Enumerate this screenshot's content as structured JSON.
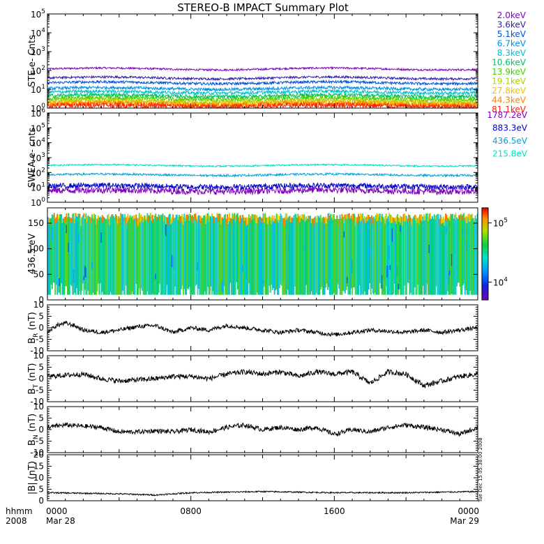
{
  "title": "STEREO-B IMPACT Summary Plot",
  "time_axis": {
    "corner_labels": [
      "hhmm",
      "2008"
    ],
    "ticks": [
      {
        "hhmm": "0000",
        "date": "Mar 28",
        "hour": 0
      },
      {
        "hhmm": "0800",
        "date": "",
        "hour": 8
      },
      {
        "hhmm": "1600",
        "date": "",
        "hour": 16
      },
      {
        "hhmm": "0000",
        "date": "Mar 29",
        "hour": 24
      }
    ]
  },
  "colorbar": {
    "tick_labels": [
      "10^5",
      "10^4"
    ],
    "tick_values": [
      100000,
      10000
    ],
    "range": [
      5000,
      180000
    ]
  },
  "stamp": "Tue Dec 15 05:38:00 2008",
  "chart_data": [
    {
      "id": "ste",
      "type": "line",
      "log": true,
      "ylabel": "STE e- Cnts",
      "ylim": [
        1,
        100000
      ],
      "yticks": [
        {
          "b": "10",
          "e": "0",
          "v": 1
        },
        {
          "b": "10",
          "e": "1",
          "v": 10
        },
        {
          "b": "10",
          "e": "2",
          "v": 100
        },
        {
          "b": "10",
          "e": "3",
          "v": 1000
        },
        {
          "b": "10",
          "e": "4",
          "v": 10000
        },
        {
          "b": "10",
          "e": "5",
          "v": 100000
        }
      ],
      "series": [
        {
          "name": "2.0keV",
          "color": "#8000c0",
          "level": 120,
          "noise": 0.05
        },
        {
          "name": "3.6keV",
          "color": "#3020a0",
          "level": 40,
          "noise": 0.06
        },
        {
          "name": "5.1keV",
          "color": "#0050e0",
          "level": 22,
          "noise": 0.07
        },
        {
          "name": "6.7keV",
          "color": "#0090e0",
          "level": 11,
          "noise": 0.08
        },
        {
          "name": "8.3keV",
          "color": "#00c0d0",
          "level": 7,
          "noise": 0.09
        },
        {
          "name": "10.6keV",
          "color": "#00c060",
          "level": 4.5,
          "noise": 0.1
        },
        {
          "name": "13.9keV",
          "color": "#40d000",
          "level": 3.2,
          "noise": 0.12
        },
        {
          "name": "19.1keV",
          "color": "#b0d000",
          "level": 2.4,
          "noise": 0.12
        },
        {
          "name": "27.8keV",
          "color": "#f0c000",
          "level": 1.9,
          "noise": 0.13
        },
        {
          "name": "44.3keV",
          "color": "#ff8000",
          "level": 1.6,
          "noise": 0.14
        },
        {
          "name": "81.1keV",
          "color": "#ff2000",
          "level": 1.3,
          "noise": 0.15
        }
      ]
    },
    {
      "id": "swea",
      "type": "line",
      "log": true,
      "ylabel": "SWEA e- cnts",
      "ylim": [
        1,
        1000000
      ],
      "yticks": [
        {
          "b": "10",
          "e": "0",
          "v": 1
        },
        {
          "b": "10",
          "e": "1",
          "v": 10
        },
        {
          "b": "10",
          "e": "2",
          "v": 100
        },
        {
          "b": "10",
          "e": "3",
          "v": 1000
        },
        {
          "b": "10",
          "e": "4",
          "v": 10000
        },
        {
          "b": "10",
          "e": "5",
          "v": 100000
        },
        {
          "b": "10",
          "e": "6",
          "v": 1000000
        }
      ],
      "series": [
        {
          "name": "1787.2eV",
          "color": "#8000c0",
          "level": 6,
          "noise": 0.22
        },
        {
          "name": "883.3eV",
          "color": "#0000d0",
          "level": 12,
          "noise": 0.18
        },
        {
          "name": "436.5eV",
          "color": "#00a0e0",
          "level": 70,
          "noise": 0.07
        },
        {
          "name": "215.8eV",
          "color": "#00e0c0",
          "level": 300,
          "noise": 0.05
        }
      ]
    },
    {
      "id": "pad",
      "type": "heatmap",
      "ylabel": "436.5 eV",
      "ylim": [
        0,
        180
      ],
      "yticks": [
        {
          "t": "0",
          "v": 0
        },
        {
          "t": "50",
          "v": 50
        },
        {
          "t": "100",
          "v": 100
        },
        {
          "t": "150",
          "v": 150
        }
      ],
      "angle_range": [
        10,
        170
      ],
      "z_range": [
        5000,
        180000
      ]
    },
    {
      "id": "br",
      "type": "line",
      "ylabel": "B",
      "ysub": "R",
      "yunit": " (nT)",
      "ylim": [
        -10,
        10
      ],
      "yticks": [
        {
          "t": "-10",
          "v": -10
        },
        {
          "t": "-5",
          "v": -5
        },
        {
          "t": "0",
          "v": 0
        },
        {
          "t": "5",
          "v": 5
        },
        {
          "t": "10",
          "v": 10
        }
      ],
      "series": [
        {
          "name": "",
          "color": "#000000",
          "times": [
            0,
            0.5,
            1,
            1.5,
            2,
            3,
            4,
            5,
            6,
            7,
            8,
            9,
            10,
            11,
            12,
            13,
            14,
            15,
            16,
            17,
            18,
            19,
            20,
            21,
            22,
            23,
            24
          ],
          "values": [
            -2,
            1,
            2,
            1,
            -1,
            -2,
            -1,
            0.5,
            1,
            -2,
            0,
            -1,
            1,
            0,
            -1,
            -2,
            -1,
            -2,
            -3,
            -2,
            -1,
            -1.5,
            -2,
            -1,
            -2,
            -1,
            0
          ],
          "noise": 0.9
        }
      ]
    },
    {
      "id": "bt",
      "type": "line",
      "ylabel": "B",
      "ysub": "T",
      "yunit": " (nT)",
      "ylim": [
        -10,
        10
      ],
      "yticks": [
        {
          "t": "-10",
          "v": -10
        },
        {
          "t": "-5",
          "v": -5
        },
        {
          "t": "0",
          "v": 0
        },
        {
          "t": "5",
          "v": 5
        },
        {
          "t": "10",
          "v": 10
        }
      ],
      "series": [
        {
          "name": "",
          "color": "#000000",
          "times": [
            0,
            1,
            2,
            3,
            4,
            5,
            6,
            7,
            8,
            9,
            10,
            11,
            12,
            13,
            14,
            15,
            16,
            17,
            18,
            19,
            20,
            21,
            22,
            23,
            24
          ],
          "values": [
            1,
            1.5,
            2,
            0,
            -1,
            -0.5,
            0,
            1,
            1,
            0,
            2,
            3,
            2,
            3,
            1,
            3,
            2,
            3,
            -2,
            3,
            2,
            -3,
            -1,
            1,
            2
          ],
          "noise": 1.1
        }
      ]
    },
    {
      "id": "bn",
      "type": "line",
      "ylabel": "B",
      "ysub": "N",
      "yunit": " (nT)",
      "ylim": [
        -10,
        10
      ],
      "yticks": [
        {
          "t": "-10",
          "v": -10
        },
        {
          "t": "-5",
          "v": -5
        },
        {
          "t": "0",
          "v": 0
        },
        {
          "t": "5",
          "v": 5
        },
        {
          "t": "10",
          "v": 10
        }
      ],
      "series": [
        {
          "name": "",
          "color": "#000000",
          "times": [
            0,
            1,
            2,
            3,
            4,
            5,
            6,
            7,
            8,
            9,
            10,
            11,
            12,
            13,
            14,
            15,
            16,
            17,
            18,
            19,
            20,
            21,
            22,
            23,
            24
          ],
          "values": [
            1,
            2,
            1.5,
            1,
            -1,
            -1,
            -0.5,
            -1,
            0,
            -1,
            1,
            2,
            0,
            1,
            0,
            1,
            -2,
            0,
            -1,
            1,
            2,
            1,
            0,
            -2,
            1
          ],
          "noise": 1.0
        }
      ]
    },
    {
      "id": "bmag",
      "type": "line",
      "ylabel": "|B| (nT)",
      "ylim": [
        0,
        20
      ],
      "yticks": [
        {
          "t": "0",
          "v": 0
        },
        {
          "t": "5",
          "v": 5
        },
        {
          "t": "10",
          "v": 10
        },
        {
          "t": "15",
          "v": 15
        },
        {
          "t": "20",
          "v": 20
        }
      ],
      "series": [
        {
          "name": "",
          "color": "#000000",
          "times": [
            0,
            4,
            6,
            8,
            12,
            16,
            20,
            24
          ],
          "values": [
            3.5,
            3,
            2.5,
            3.5,
            4,
            3.5,
            3.5,
            4
          ],
          "noise": 0.3
        }
      ]
    }
  ]
}
